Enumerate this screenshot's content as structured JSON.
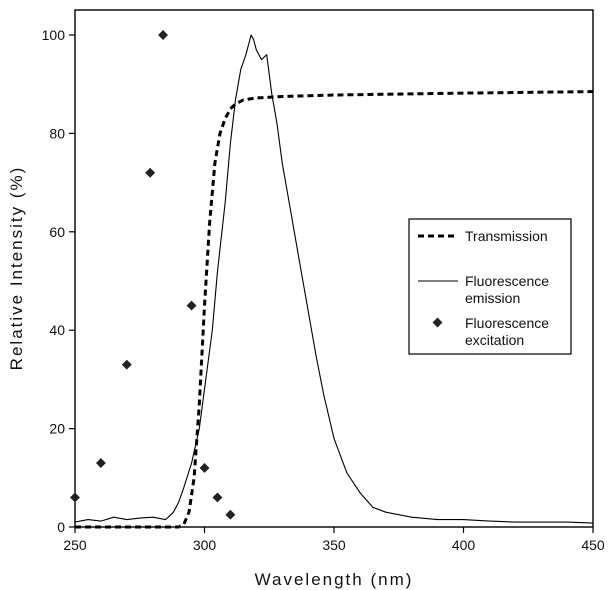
{
  "chart_data": {
    "type": "line",
    "xlabel": "Wavelength (nm)",
    "ylabel": "Relative Intensity (%)",
    "xlim": [
      250,
      450
    ],
    "ylim": [
      0,
      105
    ],
    "x_ticks": [
      250,
      300,
      350,
      400,
      450
    ],
    "y_ticks": [
      0,
      20,
      40,
      60,
      80,
      100
    ],
    "grid": false,
    "legend_position": "center-right",
    "series": [
      {
        "name": "Transmission",
        "style": "dashed",
        "color": "#000000",
        "x": [
          250,
          290,
          292,
          294,
          296,
          298,
          300,
          302,
          304,
          306,
          308,
          310,
          312,
          315,
          320,
          330,
          350,
          400,
          450
        ],
        "y": [
          0,
          0,
          0.5,
          3,
          10,
          25,
          45,
          62,
          74,
          80,
          83,
          85,
          86,
          86.8,
          87.2,
          87.5,
          87.8,
          88.2,
          88.5
        ]
      },
      {
        "name": "Fluorescence emission",
        "style": "solid",
        "color": "#000000",
        "x": [
          250,
          255,
          260,
          265,
          270,
          275,
          280,
          285,
          288,
          290,
          292,
          295,
          298,
          300,
          303,
          305,
          308,
          310,
          312,
          314,
          316,
          318,
          319,
          320,
          322,
          324,
          326,
          328,
          330,
          333,
          336,
          340,
          343,
          346,
          350,
          355,
          360,
          365,
          370,
          380,
          390,
          400,
          410,
          420,
          430,
          440,
          450
        ],
        "y": [
          1,
          1.5,
          1.2,
          2,
          1.5,
          1.8,
          2,
          1.5,
          3,
          5,
          8,
          13,
          20,
          28,
          40,
          52,
          66,
          78,
          87,
          93,
          96,
          100,
          99,
          97,
          95,
          96,
          88,
          82,
          74,
          65,
          56,
          44,
          35,
          27,
          18,
          11,
          7,
          4,
          3,
          2,
          1.5,
          1.5,
          1.2,
          1,
          1,
          1,
          0.8
        ]
      },
      {
        "name": "Fluorescence excitation",
        "style": "marker",
        "color": "#000000",
        "x": [
          250,
          260,
          270,
          279,
          284,
          295,
          300,
          305,
          310
        ],
        "y": [
          6,
          13,
          33,
          72,
          100,
          45,
          12,
          6,
          2.5
        ]
      }
    ]
  },
  "legend": {
    "transmission": "Transmission",
    "emission_line1": "Fluorescence",
    "emission_line2": "emission",
    "excitation_line1": "Fluorescence",
    "excitation_line2": "excitation"
  }
}
